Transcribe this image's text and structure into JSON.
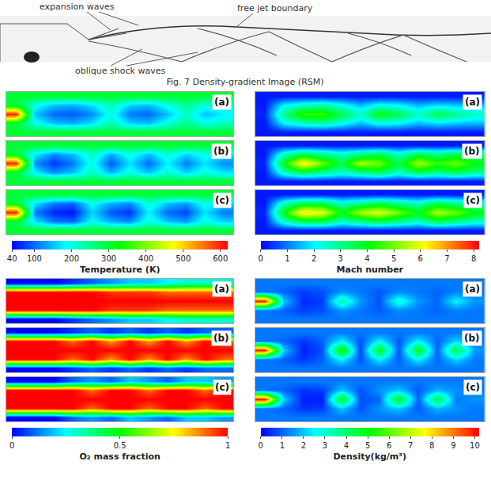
{
  "schlieren": {
    "labels": {
      "expansion": "expansion waves",
      "boundary": "free jet boundary",
      "shock": "oblique shock waves"
    },
    "caption": "Fig. 7 Density-gradient Image (RSM)"
  },
  "chart_data": [
    {
      "type": "heatmap",
      "title": "Temperature (K)",
      "colorbar_range": [
        40,
        620
      ],
      "colorbar_ticks": [
        40,
        100,
        200,
        300,
        400,
        500,
        600
      ],
      "panels": [
        {
          "label": "(a)",
          "z": [
            [
              300,
              300,
              300,
              300,
              300,
              300,
              300,
              300,
              300,
              300,
              300,
              300
            ],
            [
              300,
              200,
              150,
              140,
              170,
              230,
              160,
              150,
              200,
              250,
              200,
              220
            ],
            [
              600,
              150,
              100,
              90,
              120,
              200,
              110,
              100,
              150,
              220,
              150,
              180
            ],
            [
              300,
              200,
              150,
              140,
              170,
              230,
              160,
              150,
              200,
              250,
              200,
              220
            ],
            [
              300,
              300,
              300,
              300,
              300,
              300,
              300,
              300,
              300,
              300,
              300,
              300
            ]
          ]
        },
        {
          "label": "(b)",
          "z": [
            [
              300,
              300,
              300,
              300,
              300,
              300,
              300,
              300,
              300,
              300,
              300,
              300
            ],
            [
              300,
              180,
              120,
              150,
              220,
              140,
              200,
              150,
              210,
              160,
              200,
              170
            ],
            [
              600,
              120,
              70,
              110,
              200,
              90,
              170,
              100,
              180,
              110,
              170,
              120
            ],
            [
              300,
              180,
              120,
              150,
              220,
              140,
              200,
              150,
              210,
              160,
              200,
              170
            ],
            [
              300,
              300,
              300,
              300,
              300,
              300,
              300,
              300,
              300,
              300,
              300,
              300
            ]
          ]
        },
        {
          "label": "(c)",
          "z": [
            [
              300,
              300,
              300,
              300,
              300,
              300,
              300,
              300,
              300,
              300,
              300,
              300
            ],
            [
              300,
              170,
              110,
              100,
              190,
              140,
              120,
              210,
              150,
              130,
              200,
              160
            ],
            [
              600,
              110,
              60,
              50,
              160,
              90,
              70,
              180,
              100,
              80,
              170,
              110
            ],
            [
              300,
              170,
              110,
              100,
              190,
              140,
              120,
              210,
              150,
              130,
              200,
              160
            ],
            [
              300,
              300,
              300,
              300,
              300,
              300,
              300,
              300,
              300,
              300,
              300,
              300
            ]
          ]
        }
      ]
    },
    {
      "type": "heatmap",
      "title": "Mach number",
      "colorbar_range": [
        0,
        8.2
      ],
      "colorbar_ticks": [
        0,
        1,
        2,
        3,
        4,
        5,
        6,
        7,
        8
      ],
      "panels": [
        {
          "label": "(a)",
          "z": [
            [
              0.2,
              0.2,
              0.2,
              0.2,
              0.2,
              0.2,
              0.2,
              0.2,
              0.2,
              0.2,
              0.2,
              0.2
            ],
            [
              0.2,
              2,
              2.5,
              2.8,
              2.2,
              1.5,
              2.2,
              2,
              1.5,
              1.8,
              1.6,
              1.5
            ],
            [
              0.3,
              3,
              4.5,
              4.5,
              3.5,
              2.5,
              4,
              3.5,
              2.5,
              3.5,
              3,
              2.5
            ],
            [
              0.2,
              2,
              2.5,
              2.8,
              2.2,
              1.5,
              2.2,
              2,
              1.5,
              1.8,
              1.6,
              1.5
            ],
            [
              0.2,
              0.2,
              0.2,
              0.2,
              0.2,
              0.2,
              0.2,
              0.2,
              0.2,
              0.2,
              0.2,
              0.2
            ]
          ]
        },
        {
          "label": "(b)",
          "z": [
            [
              0.2,
              0.2,
              0.2,
              0.2,
              0.2,
              0.2,
              0.2,
              0.2,
              0.2,
              0.2,
              0.2,
              0.2
            ],
            [
              0.2,
              2.5,
              3.5,
              3,
              2.5,
              3,
              3.5,
              2.5,
              3.5,
              3,
              3.5,
              3
            ],
            [
              0.3,
              4,
              6.5,
              5,
              3.5,
              5.5,
              5,
              3.5,
              5.5,
              4.5,
              5,
              4
            ],
            [
              0.2,
              2.5,
              3.5,
              3,
              2.5,
              3,
              3.5,
              2.5,
              3.5,
              3,
              3.5,
              3
            ],
            [
              0.2,
              0.2,
              0.2,
              0.2,
              0.2,
              0.2,
              0.2,
              0.2,
              0.2,
              0.2,
              0.2,
              0.2
            ]
          ]
        },
        {
          "label": "(c)",
          "z": [
            [
              0.2,
              0.2,
              0.2,
              0.2,
              0.2,
              0.2,
              0.2,
              0.2,
              0.2,
              0.2,
              0.2,
              0.2
            ],
            [
              0.2,
              2.5,
              3.5,
              3.5,
              2.5,
              3,
              3.5,
              3,
              2.5,
              3.5,
              3,
              2.5
            ],
            [
              0.3,
              4,
              6.5,
              6,
              4,
              5.5,
              6,
              5,
              4,
              5.5,
              5,
              4
            ],
            [
              0.2,
              2.5,
              3.5,
              3.5,
              2.5,
              3,
              3.5,
              3,
              2.5,
              3.5,
              3,
              2.5
            ],
            [
              0.2,
              0.2,
              0.2,
              0.2,
              0.2,
              0.2,
              0.2,
              0.2,
              0.2,
              0.2,
              0.2,
              0.2
            ]
          ]
        }
      ]
    },
    {
      "type": "heatmap",
      "title": "O₂ mass fraction",
      "colorbar_range": [
        0,
        1
      ],
      "colorbar_ticks": [
        0,
        0.5,
        1
      ],
      "panels": [
        {
          "label": "(a)",
          "z": [
            [
              0,
              0,
              0,
              0.05,
              0.1,
              0.15,
              0.2,
              0.2,
              0.25,
              0.3,
              0.3,
              0.3
            ],
            [
              1,
              1,
              1,
              1,
              1,
              0.95,
              0.95,
              0.95,
              0.9,
              0.9,
              0.9,
              0.9
            ],
            [
              1,
              1,
              1,
              1,
              1,
              1,
              1,
              1,
              1,
              1,
              1,
              1
            ],
            [
              1,
              1,
              1,
              1,
              1,
              0.95,
              0.95,
              0.95,
              0.9,
              0.9,
              0.9,
              0.9
            ],
            [
              0,
              0,
              0,
              0.05,
              0.1,
              0.15,
              0.2,
              0.2,
              0.25,
              0.3,
              0.3,
              0.3
            ]
          ]
        },
        {
          "label": "(b)",
          "z": [
            [
              0,
              0,
              0,
              0.05,
              0.1,
              0.05,
              0.1,
              0.05,
              0.1,
              0.05,
              0.1,
              0.1
            ],
            [
              1,
              1,
              1,
              0.9,
              1,
              0.85,
              1,
              0.85,
              1,
              0.85,
              1,
              0.9
            ],
            [
              1,
              1,
              1,
              1,
              1,
              1,
              1,
              1,
              1,
              1,
              1,
              1
            ],
            [
              1,
              1,
              1,
              0.9,
              1,
              0.85,
              1,
              0.85,
              1,
              0.85,
              1,
              0.9
            ],
            [
              0,
              0,
              0,
              0.05,
              0.1,
              0.05,
              0.1,
              0.05,
              0.1,
              0.05,
              0.1,
              0.1
            ]
          ]
        },
        {
          "label": "(c)",
          "z": [
            [
              0,
              0,
              0,
              0.1,
              0.15,
              0.1,
              0.2,
              0.15,
              0.1,
              0.2,
              0.2,
              0.15
            ],
            [
              1,
              1,
              1,
              1,
              0.9,
              1,
              1,
              0.9,
              1,
              1,
              0.9,
              1
            ],
            [
              1,
              1,
              1,
              1,
              1,
              1,
              1,
              1,
              1,
              1,
              1,
              1
            ],
            [
              1,
              1,
              1,
              1,
              0.9,
              1,
              1,
              0.9,
              1,
              1,
              0.9,
              1
            ],
            [
              0,
              0,
              0,
              0.1,
              0.15,
              0.1,
              0.2,
              0.15,
              0.1,
              0.2,
              0.2,
              0.15
            ]
          ]
        }
      ]
    },
    {
      "type": "heatmap",
      "title": "Density(kg/m³)",
      "colorbar_range": [
        0,
        10.2
      ],
      "colorbar_ticks": [
        0,
        1,
        2,
        3,
        4,
        5,
        6,
        7,
        8,
        9,
        10
      ],
      "panels": [
        {
          "label": "(a)",
          "z": [
            [
              1.2,
              1.2,
              1.2,
              1.2,
              1.2,
              1.2,
              1.2,
              1.2,
              1.2,
              1.2,
              1.2,
              1.2
            ],
            [
              1.2,
              1,
              0.6,
              0.8,
              1.5,
              1.2,
              0.9,
              1.4,
              1.2,
              1,
              1.3,
              1.2
            ],
            [
              10,
              2,
              0.4,
              0.6,
              3.5,
              1.5,
              0.8,
              3,
              1.5,
              1,
              2.5,
              1.5
            ],
            [
              1.2,
              1,
              0.6,
              0.8,
              1.5,
              1.2,
              0.9,
              1.4,
              1.2,
              1,
              1.3,
              1.2
            ],
            [
              1.2,
              1.2,
              1.2,
              1.2,
              1.2,
              1.2,
              1.2,
              1.2,
              1.2,
              1.2,
              1.2,
              1.2
            ]
          ]
        },
        {
          "label": "(b)",
          "z": [
            [
              1.2,
              1.2,
              1.2,
              1.2,
              1.2,
              1.2,
              1.2,
              1.2,
              1.2,
              1.2,
              1.2,
              1.2
            ],
            [
              1.2,
              1,
              0.5,
              1,
              2.5,
              0.8,
              2.5,
              0.9,
              2.5,
              1,
              2.2,
              1.2
            ],
            [
              10,
              2,
              0.3,
              0.8,
              5.5,
              0.6,
              5,
              0.8,
              5,
              0.9,
              4.5,
              1.5
            ],
            [
              1.2,
              1,
              0.5,
              1,
              2.5,
              0.8,
              2.5,
              0.9,
              2.5,
              1,
              2.2,
              1.2
            ],
            [
              1.2,
              1.2,
              1.2,
              1.2,
              1.2,
              1.2,
              1.2,
              1.2,
              1.2,
              1.2,
              1.2,
              1.2
            ]
          ]
        },
        {
          "label": "(c)",
          "z": [
            [
              1.2,
              1.2,
              1.2,
              1.2,
              1.2,
              1.2,
              1.2,
              1.2,
              1.2,
              1.2,
              1.2,
              1.2
            ],
            [
              1.2,
              1,
              0.5,
              0.6,
              2,
              0.8,
              1.5,
              2,
              0.9,
              1.8,
              1.5,
              1.2
            ],
            [
              10,
              2,
              0.3,
              0.3,
              5,
              0.8,
              1,
              5,
              0.9,
              4.5,
              1.2,
              1.5
            ],
            [
              1.2,
              1,
              0.5,
              0.6,
              2,
              0.8,
              1.5,
              2,
              0.9,
              1.8,
              1.5,
              1.2
            ],
            [
              1.2,
              1.2,
              1.2,
              1.2,
              1.2,
              1.2,
              1.2,
              1.2,
              1.2,
              1.2,
              1.2,
              1.2
            ]
          ]
        }
      ]
    }
  ]
}
